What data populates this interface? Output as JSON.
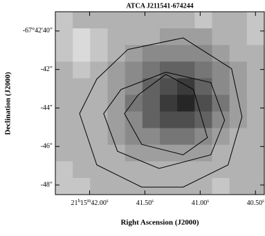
{
  "chart_data": {
    "type": "image",
    "title": "ATCA J211541-674244",
    "xlabel": "Right Ascension (J2000)",
    "ylabel": "Declination (J2000)",
    "xlim": [
      42.31,
      40.42
    ],
    "ylim": [
      39,
      48.5
    ],
    "xticks": [
      {
        "value": 42.0,
        "label": "21h15m42.00s"
      },
      {
        "value": 41.5,
        "label": "41.50s"
      },
      {
        "value": 41.0,
        "label": "41.00s"
      },
      {
        "value": 40.5,
        "label": "40.50s"
      }
    ],
    "yticks": [
      {
        "value": 40,
        "label": "-67°42'40\""
      },
      {
        "value": 42,
        "label": "-42\""
      },
      {
        "value": 44,
        "label": "-44\""
      },
      {
        "value": 46,
        "label": "-46\""
      },
      {
        "value": 48,
        "label": "-48\""
      }
    ],
    "z": [
      [
        2,
        3,
        3,
        3,
        3,
        3,
        3,
        3,
        2,
        3,
        3,
        2
      ],
      [
        2,
        1,
        2,
        3,
        3,
        3,
        4,
        4,
        4,
        3,
        3,
        2
      ],
      [
        2,
        1,
        2,
        3,
        4,
        5,
        5,
        5,
        5,
        4,
        3,
        3
      ],
      [
        3,
        2,
        3,
        4,
        5,
        6,
        7,
        7,
        6,
        5,
        4,
        3
      ],
      [
        3,
        3,
        3,
        4,
        5,
        7,
        8,
        9,
        7,
        5,
        4,
        3
      ],
      [
        3,
        3,
        3,
        4,
        6,
        7,
        9,
        10,
        8,
        6,
        4,
        3
      ],
      [
        3,
        3,
        3,
        4,
        5,
        7,
        8,
        8,
        7,
        5,
        4,
        3
      ],
      [
        3,
        3,
        3,
        4,
        5,
        5,
        6,
        6,
        5,
        4,
        3,
        3
      ],
      [
        3,
        3,
        3,
        3,
        4,
        4,
        4,
        4,
        4,
        3,
        3,
        3
      ],
      [
        2,
        3,
        3,
        3,
        3,
        3,
        3,
        3,
        3,
        3,
        3,
        3
      ],
      [
        2,
        2,
        3,
        3,
        3,
        3,
        3,
        3,
        3,
        2,
        3,
        3
      ]
    ],
    "contour_color": "#000000",
    "contours": [
      {
        "x": [
          41.654,
          41.154,
          40.716,
          40.622,
          40.748,
          41.154,
          41.529,
          41.935,
          42.091,
          41.935,
          41.654
        ],
        "values": [
          40.96,
          40.36,
          41.96,
          44.46,
          46.96,
          48.11,
          48.11,
          46.96,
          44.29,
          42.5,
          40.96
        ]
      },
      {
        "x": [
          41.31,
          40.904,
          40.779,
          40.904,
          41.372,
          41.748,
          41.873,
          41.716,
          41.31
        ],
        "values": [
          42.14,
          42.68,
          44.64,
          46.43,
          47.14,
          46.25,
          44.29,
          43.04,
          42.14
        ]
      },
      {
        "x": [
          41.31,
          41.06,
          40.935,
          41.154,
          41.529,
          41.685,
          41.56,
          41.31
        ],
        "values": [
          42.25,
          43.04,
          45.54,
          46.43,
          45.89,
          44.29,
          43.32,
          42.25
        ]
      }
    ]
  }
}
